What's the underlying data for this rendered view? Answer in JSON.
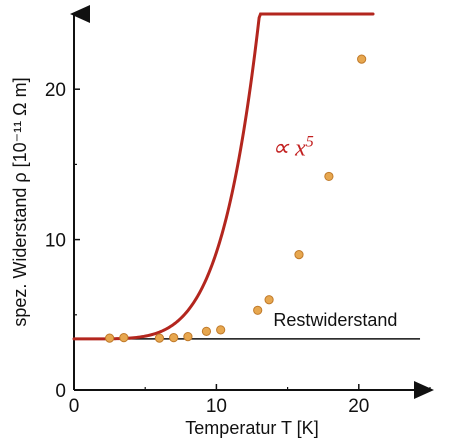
{
  "chart_data": {
    "type": "scatter",
    "xlabel": "Temperatur T [K]",
    "ylabel": "spez. Widerstand ρ [10⁻¹¹ Ω m]",
    "xlim": [
      0,
      25
    ],
    "ylim": [
      0,
      25
    ],
    "x_ticks": [
      "0",
      "10",
      "20"
    ],
    "y_ticks": [
      "0",
      "10",
      "20"
    ],
    "x_tick_values": [
      0,
      10,
      20
    ],
    "y_tick_values": [
      0,
      10,
      20
    ],
    "residual_value": 3.4,
    "residual_label": "Restwiderstand",
    "fit_label": "∝ x",
    "fit_exponent": "5",
    "fit_model": {
      "base": 3.4,
      "exponent": 5,
      "coefficient": 5.75e-05
    },
    "colors": {
      "curve": "#b3261e",
      "points_fill": "#e7a74f",
      "points_stroke": "#c07a2a",
      "axis": "#111111",
      "formula": "#c21f1f"
    },
    "series": [
      {
        "values": [
          {
            "x": 2.5,
            "y": 3.45
          },
          {
            "x": 3.5,
            "y": 3.48
          },
          {
            "x": 6.0,
            "y": 3.45
          },
          {
            "x": 7.0,
            "y": 3.48
          },
          {
            "x": 8.0,
            "y": 3.55
          },
          {
            "x": 9.3,
            "y": 3.9
          },
          {
            "x": 10.3,
            "y": 4.0
          },
          {
            "x": 12.9,
            "y": 5.3
          },
          {
            "x": 13.7,
            "y": 6.0
          },
          {
            "x": 15.8,
            "y": 9.0
          },
          {
            "x": 17.9,
            "y": 14.2
          },
          {
            "x": 20.2,
            "y": 22.0
          }
        ]
      }
    ]
  }
}
